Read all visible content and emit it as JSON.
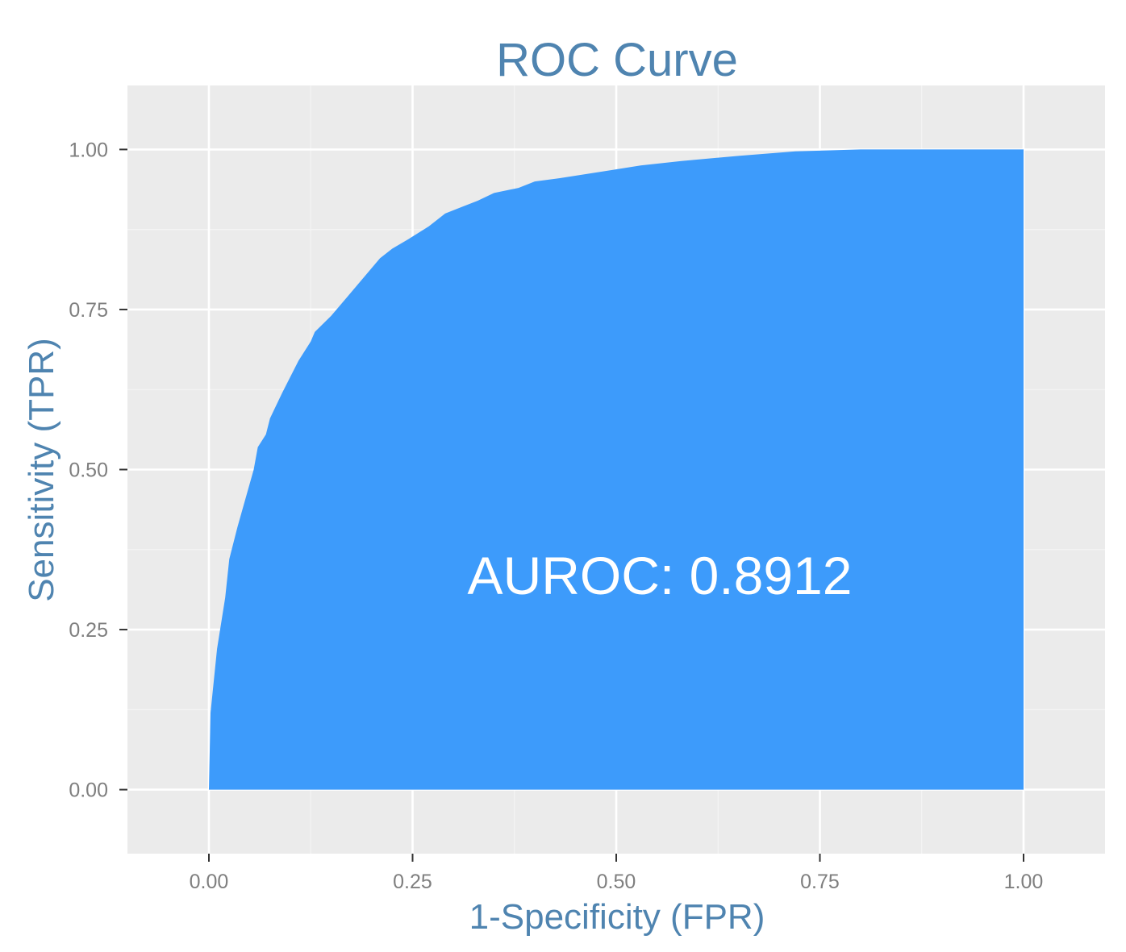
{
  "chart_data": {
    "type": "area",
    "title": "ROC Curve",
    "xlabel": "1-Specificity (FPR)",
    "ylabel": "Sensitivity (TPR)",
    "annotation": "AUROC: 0.8912",
    "xlim": [
      -0.1,
      1.1
    ],
    "ylim": [
      -0.1,
      1.1
    ],
    "x_ticks": [
      {
        "value": 0.0,
        "label": "0.00"
      },
      {
        "value": 0.25,
        "label": "0.25"
      },
      {
        "value": 0.5,
        "label": "0.50"
      },
      {
        "value": 0.75,
        "label": "0.75"
      },
      {
        "value": 1.0,
        "label": "1.00"
      }
    ],
    "y_ticks": [
      {
        "value": 0.0,
        "label": "0.00"
      },
      {
        "value": 0.25,
        "label": "0.25"
      },
      {
        "value": 0.5,
        "label": "0.50"
      },
      {
        "value": 0.75,
        "label": "0.75"
      },
      {
        "value": 1.0,
        "label": "1.00"
      }
    ],
    "grid": true,
    "legend": "none",
    "colors": {
      "fill": "#3d9bfb",
      "panel": "#ebebeb",
      "grid": "#ffffff",
      "title": "#4f84b0",
      "axis_label": "#4f84b0",
      "tick_label": "#7f7f7f",
      "annotation": "#ffffff"
    },
    "series": [
      {
        "x": [
          0.0,
          0.002,
          0.01,
          0.02,
          0.025,
          0.035,
          0.045,
          0.055,
          0.06,
          0.07,
          0.075,
          0.09,
          0.11,
          0.125,
          0.13,
          0.15,
          0.17,
          0.19,
          0.21,
          0.225,
          0.245,
          0.27,
          0.29,
          0.31,
          0.33,
          0.35,
          0.38,
          0.4,
          0.43,
          0.48,
          0.53,
          0.58,
          0.65,
          0.72,
          0.8,
          0.9,
          1.0
        ],
        "y": [
          0.0,
          0.12,
          0.22,
          0.3,
          0.36,
          0.41,
          0.455,
          0.5,
          0.535,
          0.555,
          0.58,
          0.62,
          0.67,
          0.7,
          0.715,
          0.74,
          0.77,
          0.8,
          0.83,
          0.845,
          0.86,
          0.88,
          0.9,
          0.91,
          0.92,
          0.932,
          0.94,
          0.95,
          0.955,
          0.965,
          0.975,
          0.982,
          0.99,
          0.997,
          1.0,
          1.0,
          1.0
        ]
      }
    ]
  }
}
